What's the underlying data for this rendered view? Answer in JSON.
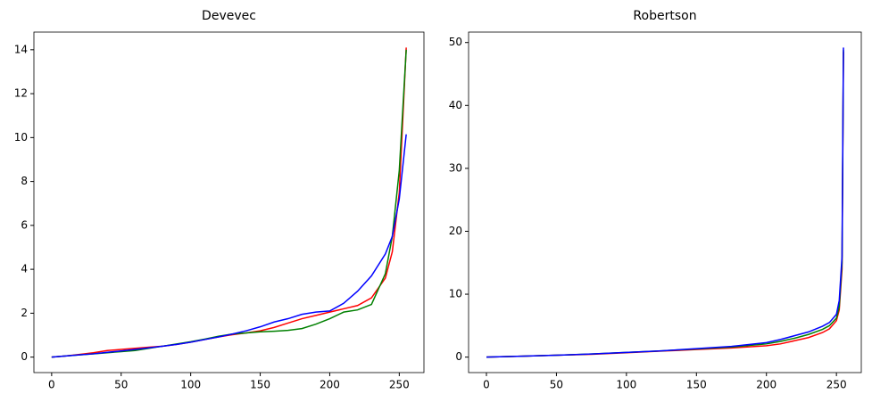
{
  "chart_data": [
    {
      "type": "line",
      "title": "Devevec",
      "x": [
        0,
        10,
        20,
        30,
        40,
        50,
        60,
        70,
        80,
        90,
        100,
        110,
        120,
        130,
        140,
        150,
        160,
        170,
        180,
        190,
        200,
        210,
        220,
        230,
        240,
        245,
        250,
        255
      ],
      "series": [
        {
          "color": "#ff0000",
          "values": [
            0,
            0.05,
            0.12,
            0.2,
            0.3,
            0.35,
            0.4,
            0.45,
            0.5,
            0.58,
            0.68,
            0.8,
            0.92,
            1.02,
            1.1,
            1.2,
            1.35,
            1.55,
            1.75,
            1.9,
            2.05,
            2.2,
            2.35,
            2.7,
            3.6,
            4.8,
            7.5,
            14.1
          ]
        },
        {
          "color": "#008000",
          "values": [
            0,
            0.05,
            0.1,
            0.15,
            0.2,
            0.25,
            0.3,
            0.4,
            0.5,
            0.6,
            0.7,
            0.82,
            0.95,
            1.05,
            1.1,
            1.15,
            1.18,
            1.22,
            1.3,
            1.5,
            1.75,
            2.05,
            2.15,
            2.4,
            3.8,
            5.5,
            8.5,
            14.0
          ]
        },
        {
          "color": "#0000ff",
          "values": [
            0,
            0.05,
            0.1,
            0.15,
            0.22,
            0.28,
            0.35,
            0.42,
            0.5,
            0.58,
            0.68,
            0.8,
            0.92,
            1.05,
            1.2,
            1.38,
            1.6,
            1.75,
            1.95,
            2.05,
            2.1,
            2.45,
            3.0,
            3.7,
            4.7,
            5.5,
            7.2,
            10.15
          ]
        }
      ],
      "xlim": [
        -12.75,
        267.75
      ],
      "xticks": [
        0,
        50,
        100,
        150,
        200,
        250
      ],
      "ylim": [
        -0.705,
        14.805
      ],
      "yticks": [
        0,
        2,
        4,
        6,
        8,
        10,
        12,
        14
      ]
    },
    {
      "type": "line",
      "title": "Robertson",
      "x": [
        0,
        25,
        50,
        75,
        100,
        125,
        150,
        175,
        200,
        210,
        220,
        230,
        240,
        245,
        250,
        252,
        254,
        255
      ],
      "series": [
        {
          "color": "#ff0000",
          "values": [
            0,
            0.15,
            0.3,
            0.45,
            0.7,
            0.95,
            1.2,
            1.45,
            1.8,
            2.1,
            2.6,
            3.1,
            3.9,
            4.5,
            5.8,
            7.5,
            14,
            48.5
          ]
        },
        {
          "color": "#008000",
          "values": [
            0,
            0.15,
            0.3,
            0.5,
            0.75,
            1.0,
            1.3,
            1.6,
            2.1,
            2.5,
            3.0,
            3.6,
            4.4,
            5.0,
            6.2,
            8,
            15,
            48.8
          ]
        },
        {
          "color": "#0000ff",
          "values": [
            0,
            0.15,
            0.3,
            0.5,
            0.75,
            1.0,
            1.35,
            1.7,
            2.3,
            2.8,
            3.4,
            4.0,
            4.9,
            5.5,
            6.8,
            9,
            16,
            49.2
          ]
        }
      ],
      "xlim": [
        -12.75,
        267.75
      ],
      "xticks": [
        0,
        50,
        100,
        150,
        200,
        250
      ],
      "ylim": [
        -2.46,
        51.66
      ],
      "yticks": [
        0,
        10,
        20,
        30,
        40,
        50
      ]
    }
  ]
}
